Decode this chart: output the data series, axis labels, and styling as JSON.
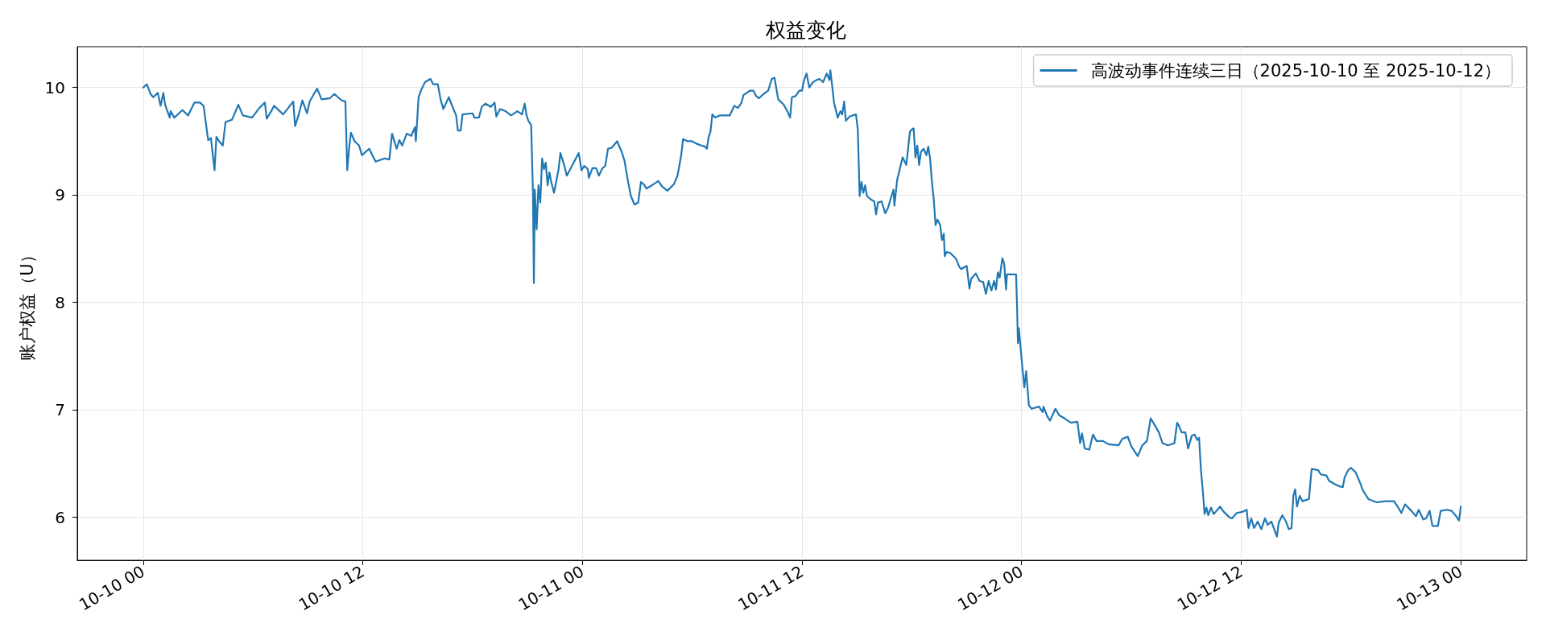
{
  "chart_data": {
    "type": "line",
    "title": "权益变化",
    "ylabel": "账户权益（U）",
    "x": [
      "2025-10-10T00:00",
      "2025-10-10T00:12",
      "2025-10-10T00:24",
      "2025-10-10T00:33",
      "2025-10-10T00:48",
      "2025-10-10T00:57",
      "2025-10-10T01:06",
      "2025-10-10T01:12",
      "2025-10-10T01:27",
      "2025-10-10T01:30",
      "2025-10-10T01:42",
      "2025-10-10T02:09",
      "2025-10-10T02:27",
      "2025-10-10T02:48",
      "2025-10-10T03:06",
      "2025-10-10T03:18",
      "2025-10-10T03:33",
      "2025-10-10T03:42",
      "2025-10-10T03:54",
      "2025-10-10T04:00",
      "2025-10-10T04:09",
      "2025-10-10T04:21",
      "2025-10-10T04:30",
      "2025-10-10T04:51",
      "2025-10-10T05:12",
      "2025-10-10T05:27",
      "2025-10-10T05:57",
      "2025-10-10T06:21",
      "2025-10-10T06:39",
      "2025-10-10T06:45",
      "2025-10-10T07:00",
      "2025-10-10T07:09",
      "2025-10-10T07:39",
      "2025-10-10T08:12",
      "2025-10-10T08:18",
      "2025-10-10T08:30",
      "2025-10-10T08:42",
      "2025-10-10T08:57",
      "2025-10-10T09:06",
      "2025-10-10T09:30",
      "2025-10-10T09:45",
      "2025-10-10T10:12",
      "2025-10-10T10:27",
      "2025-10-10T10:51",
      "2025-10-10T11:03",
      "2025-10-10T11:09",
      "2025-10-10T11:15",
      "2025-10-10T11:21",
      "2025-10-10T11:33",
      "2025-10-10T11:48",
      "2025-10-10T11:57",
      "2025-10-10T12:21",
      "2025-10-10T12:42",
      "2025-10-10T13:12",
      "2025-10-10T13:27",
      "2025-10-10T13:36",
      "2025-10-10T13:51",
      "2025-10-10T14:00",
      "2025-10-10T14:09",
      "2025-10-10T14:24",
      "2025-10-10T14:39",
      "2025-10-10T14:51",
      "2025-10-10T14:54",
      "2025-10-10T15:03",
      "2025-10-10T15:12",
      "2025-10-10T15:24",
      "2025-10-10T15:42",
      "2025-10-10T15:51",
      "2025-10-10T16:06",
      "2025-10-10T16:15",
      "2025-10-10T16:24",
      "2025-10-10T16:42",
      "2025-10-10T16:57",
      "2025-10-10T17:06",
      "2025-10-10T17:12",
      "2025-10-10T17:21",
      "2025-10-10T17:27",
      "2025-10-10T18:00",
      "2025-10-10T18:06",
      "2025-10-10T18:21",
      "2025-10-10T18:30",
      "2025-10-10T18:42",
      "2025-10-10T19:00",
      "2025-10-10T19:12",
      "2025-10-10T19:18",
      "2025-10-10T19:30",
      "2025-10-10T19:48",
      "2025-10-10T20:06",
      "2025-10-10T20:27",
      "2025-10-10T20:42",
      "2025-10-10T20:51",
      "2025-10-10T20:57",
      "2025-10-10T21:03",
      "2025-10-10T21:12",
      "2025-10-10T21:18",
      "2025-10-10T21:21",
      "2025-10-10T21:24",
      "2025-10-10T21:30",
      "2025-10-10T21:36",
      "2025-10-10T21:42",
      "2025-10-10T21:48",
      "2025-10-10T21:54",
      "2025-10-10T22:00",
      "2025-10-10T22:06",
      "2025-10-10T22:12",
      "2025-10-10T22:18",
      "2025-10-10T22:27",
      "2025-10-10T22:42",
      "2025-10-10T22:48",
      "2025-10-10T23:00",
      "2025-10-10T23:09",
      "2025-10-10T23:24",
      "2025-10-10T23:33",
      "2025-10-10T23:48",
      "2025-10-10T23:57",
      "2025-10-11T00:06",
      "2025-10-11T00:18",
      "2025-10-11T00:21",
      "2025-10-11T00:33",
      "2025-10-11T00:45",
      "2025-10-11T00:54",
      "2025-10-11T01:06",
      "2025-10-11T01:15",
      "2025-10-11T01:24",
      "2025-10-11T01:36",
      "2025-10-11T01:45",
      "2025-10-11T01:54",
      "2025-10-11T02:09",
      "2025-10-11T02:18",
      "2025-10-11T02:30",
      "2025-10-11T02:39",
      "2025-10-11T02:51",
      "2025-10-11T03:03",
      "2025-10-11T03:12",
      "2025-10-11T03:21",
      "2025-10-11T03:30",
      "2025-10-11T03:48",
      "2025-10-11T04:09",
      "2025-10-11T04:21",
      "2025-10-11T04:39",
      "2025-10-11T05:00",
      "2025-10-11T05:12",
      "2025-10-11T05:24",
      "2025-10-11T05:30",
      "2025-10-11T05:45",
      "2025-10-11T06:00",
      "2025-10-11T06:12",
      "2025-10-11T06:30",
      "2025-10-11T06:42",
      "2025-10-11T06:48",
      "2025-10-11T06:54",
      "2025-10-11T07:00",
      "2025-10-11T07:06",
      "2025-10-11T07:15",
      "2025-10-11T07:30",
      "2025-10-11T08:03",
      "2025-10-11T08:18",
      "2025-10-11T08:30",
      "2025-10-11T08:42",
      "2025-10-11T08:48",
      "2025-10-11T09:09",
      "2025-10-11T09:21",
      "2025-10-11T09:30",
      "2025-10-11T09:39",
      "2025-10-11T09:54",
      "2025-10-11T10:09",
      "2025-10-11T10:21",
      "2025-10-11T10:30",
      "2025-10-11T10:42",
      "2025-10-11T11:00",
      "2025-10-11T11:12",
      "2025-10-11T11:21",
      "2025-10-11T11:27",
      "2025-10-11T11:39",
      "2025-10-11T11:51",
      "2025-10-11T12:00",
      "2025-10-11T12:06",
      "2025-10-11T12:15",
      "2025-10-11T12:24",
      "2025-10-11T12:36",
      "2025-10-11T12:48",
      "2025-10-11T12:57",
      "2025-10-11T13:09",
      "2025-10-11T13:21",
      "2025-10-11T13:30",
      "2025-10-11T13:33",
      "2025-10-11T13:42",
      "2025-10-11T13:45",
      "2025-10-11T13:57",
      "2025-10-11T14:06",
      "2025-10-11T14:12",
      "2025-10-11T14:18",
      "2025-10-11T14:24",
      "2025-10-11T14:36",
      "2025-10-11T14:57",
      "2025-10-11T15:03",
      "2025-10-11T15:09",
      "2025-10-11T15:15",
      "2025-10-11T15:21",
      "2025-10-11T15:27",
      "2025-10-11T15:33",
      "2025-10-11T15:45",
      "2025-10-11T15:57",
      "2025-10-11T16:03",
      "2025-10-11T16:09",
      "2025-10-11T16:21",
      "2025-10-11T16:33",
      "2025-10-11T16:42",
      "2025-10-11T17:00",
      "2025-10-11T17:03",
      "2025-10-11T17:12",
      "2025-10-11T17:24",
      "2025-10-11T17:30",
      "2025-10-11T17:42",
      "2025-10-11T17:54",
      "2025-10-11T18:00",
      "2025-10-11T18:06",
      "2025-10-11T18:12",
      "2025-10-11T18:18",
      "2025-10-11T18:24",
      "2025-10-11T18:30",
      "2025-10-11T18:39",
      "2025-10-11T18:48",
      "2025-10-11T18:54",
      "2025-10-11T19:00",
      "2025-10-11T19:06",
      "2025-10-11T19:12",
      "2025-10-11T19:18",
      "2025-10-11T19:24",
      "2025-10-11T19:33",
      "2025-10-11T19:39",
      "2025-10-11T19:45",
      "2025-10-11T19:48",
      "2025-10-11T19:54",
      "2025-10-11T20:06",
      "2025-10-11T20:24",
      "2025-10-11T20:36",
      "2025-10-11T20:42",
      "2025-10-11T21:00",
      "2025-10-11T21:09",
      "2025-10-11T21:15",
      "2025-10-11T21:30",
      "2025-10-11T21:42",
      "2025-10-11T21:54",
      "2025-10-11T22:03",
      "2025-10-11T22:12",
      "2025-10-11T22:21",
      "2025-10-11T22:30",
      "2025-10-11T22:36",
      "2025-10-11T22:42",
      "2025-10-11T22:48",
      "2025-10-11T22:57",
      "2025-10-11T23:03",
      "2025-10-11T23:09",
      "2025-10-11T23:12",
      "2025-10-11T23:42",
      "2025-10-11T23:45",
      "2025-10-11T23:48",
      "2025-10-11T23:51",
      "2025-10-11T23:57",
      "2025-10-12T00:03",
      "2025-10-12T00:09",
      "2025-10-12T00:15",
      "2025-10-12T00:24",
      "2025-10-12T00:33",
      "2025-10-12T00:57",
      "2025-10-12T01:09",
      "2025-10-12T01:12",
      "2025-10-12T01:24",
      "2025-10-12T01:33",
      "2025-10-12T01:51",
      "2025-10-12T02:03",
      "2025-10-12T02:21",
      "2025-10-12T02:42",
      "2025-10-12T03:03",
      "2025-10-12T03:12",
      "2025-10-12T03:18",
      "2025-10-12T03:27",
      "2025-10-12T03:42",
      "2025-10-12T03:54",
      "2025-10-12T04:06",
      "2025-10-12T04:27",
      "2025-10-12T04:45",
      "2025-10-12T05:18",
      "2025-10-12T05:30",
      "2025-10-12T05:48",
      "2025-10-12T06:00",
      "2025-10-12T06:21",
      "2025-10-12T06:36",
      "2025-10-12T06:51",
      "2025-10-12T07:03",
      "2025-10-12T07:12",
      "2025-10-12T07:30",
      "2025-10-12T07:42",
      "2025-10-12T08:00",
      "2025-10-12T08:21",
      "2025-10-12T08:30",
      "2025-10-12T08:36",
      "2025-10-12T08:45",
      "2025-10-12T08:57",
      "2025-10-12T09:06",
      "2025-10-12T09:18",
      "2025-10-12T09:27",
      "2025-10-12T09:36",
      "2025-10-12T09:42",
      "2025-10-12T09:48",
      "2025-10-12T09:54",
      "2025-10-12T10:00",
      "2025-10-12T10:06",
      "2025-10-12T10:12",
      "2025-10-12T10:21",
      "2025-10-12T10:30",
      "2025-10-12T10:51",
      "2025-10-12T11:00",
      "2025-10-12T11:21",
      "2025-10-12T11:30",
      "2025-10-12T11:45",
      "2025-10-12T12:03",
      "2025-10-12T12:18",
      "2025-10-12T12:24",
      "2025-10-12T12:33",
      "2025-10-12T12:42",
      "2025-10-12T12:54",
      "2025-10-12T13:06",
      "2025-10-12T13:18",
      "2025-10-12T13:27",
      "2025-10-12T13:39",
      "2025-10-12T13:57",
      "2025-10-12T14:03",
      "2025-10-12T14:15",
      "2025-10-12T14:27",
      "2025-10-12T14:36",
      "2025-10-12T14:45",
      "2025-10-12T14:51",
      "2025-10-12T14:57",
      "2025-10-12T15:03",
      "2025-10-12T15:12",
      "2025-10-12T15:21",
      "2025-10-12T15:42",
      "2025-10-12T15:51",
      "2025-10-12T16:12",
      "2025-10-12T16:21",
      "2025-10-12T16:39",
      "2025-10-12T16:48",
      "2025-10-12T17:06",
      "2025-10-12T17:21",
      "2025-10-12T17:33",
      "2025-10-12T17:39",
      "2025-10-12T17:51",
      "2025-10-12T18:00",
      "2025-10-12T18:15",
      "2025-10-12T18:30",
      "2025-10-12T18:39",
      "2025-10-12T18:57",
      "2025-10-12T19:24",
      "2025-10-12T19:54",
      "2025-10-12T20:21",
      "2025-10-12T20:33",
      "2025-10-12T20:45",
      "2025-10-12T20:57",
      "2025-10-12T21:18",
      "2025-10-12T21:33",
      "2025-10-12T21:42",
      "2025-10-12T21:57",
      "2025-10-12T22:06",
      "2025-10-12T22:18",
      "2025-10-12T22:27",
      "2025-10-12T22:45",
      "2025-10-12T22:54",
      "2025-10-12T23:15",
      "2025-10-12T23:30",
      "2025-10-12T23:45",
      "2025-10-12T23:54",
      "2025-10-12T23:57",
      "2025-10-13T00:00"
    ],
    "series": [
      {
        "name": "高波动事件连续三日（2025-10-10 至 2025-10-12）",
        "color": "#1f77b4",
        "values": [
          10.0,
          10.03,
          9.94,
          9.91,
          9.95,
          9.83,
          9.95,
          9.84,
          9.72,
          9.78,
          9.72,
          9.79,
          9.74,
          9.86,
          9.86,
          9.83,
          9.51,
          9.53,
          9.23,
          9.54,
          9.5,
          9.46,
          9.68,
          9.7,
          9.84,
          9.74,
          9.72,
          9.81,
          9.86,
          9.71,
          9.78,
          9.83,
          9.75,
          9.87,
          9.64,
          9.75,
          9.88,
          9.76,
          9.87,
          9.99,
          9.89,
          9.9,
          9.94,
          9.88,
          9.87,
          9.23,
          9.43,
          9.58,
          9.5,
          9.46,
          9.37,
          9.43,
          9.31,
          9.34,
          9.33,
          9.57,
          9.43,
          9.51,
          9.46,
          9.57,
          9.55,
          9.63,
          9.5,
          9.91,
          9.98,
          10.05,
          10.08,
          10.03,
          10.03,
          9.89,
          9.8,
          9.91,
          9.8,
          9.74,
          9.6,
          9.6,
          9.75,
          9.76,
          9.72,
          9.72,
          9.82,
          9.85,
          9.82,
          9.86,
          9.73,
          9.8,
          9.78,
          9.74,
          9.78,
          9.75,
          9.85,
          9.74,
          9.69,
          9.65,
          9.02,
          8.18,
          9.05,
          8.68,
          9.09,
          8.93,
          9.34,
          9.24,
          9.3,
          9.09,
          9.21,
          9.12,
          9.02,
          9.24,
          9.39,
          9.28,
          9.18,
          9.26,
          9.31,
          9.39,
          9.23,
          9.27,
          9.24,
          9.16,
          9.25,
          9.25,
          9.18,
          9.25,
          9.27,
          9.43,
          9.44,
          9.47,
          9.5,
          9.4,
          9.32,
          9.12,
          8.99,
          8.91,
          8.93,
          9.12,
          9.1,
          9.06,
          9.09,
          9.13,
          9.08,
          9.04,
          9.1,
          9.18,
          9.37,
          9.52,
          9.5,
          9.5,
          9.48,
          9.46,
          9.45,
          9.43,
          9.54,
          9.59,
          9.75,
          9.72,
          9.74,
          9.74,
          9.83,
          9.81,
          9.86,
          9.93,
          9.97,
          9.97,
          9.92,
          9.9,
          9.94,
          9.97,
          10.08,
          10.09,
          9.89,
          9.84,
          9.78,
          9.72,
          9.91,
          9.92,
          9.97,
          9.97,
          10.06,
          10.13,
          10.0,
          10.05,
          10.07,
          10.08,
          10.05,
          10.13,
          10.07,
          10.16,
          9.94,
          9.86,
          9.72,
          9.78,
          9.75,
          9.87,
          9.69,
          9.73,
          9.75,
          9.61,
          8.99,
          9.12,
          9.02,
          9.09,
          8.99,
          8.96,
          8.94,
          8.82,
          8.93,
          8.94,
          8.83,
          8.88,
          9.05,
          8.9,
          9.14,
          9.28,
          9.35,
          9.28,
          9.59,
          9.61,
          9.62,
          9.35,
          9.46,
          9.28,
          9.4,
          9.43,
          9.37,
          9.45,
          9.34,
          9.12,
          8.96,
          8.72,
          8.77,
          8.72,
          8.58,
          8.64,
          8.43,
          8.47,
          8.46,
          8.41,
          8.33,
          8.31,
          8.34,
          8.13,
          8.22,
          8.27,
          8.2,
          8.19,
          8.08,
          8.2,
          8.11,
          8.2,
          8.12,
          8.28,
          8.23,
          8.41,
          8.36,
          8.12,
          8.26,
          8.26,
          7.98,
          7.62,
          7.76,
          7.57,
          7.38,
          7.21,
          7.36,
          7.04,
          7.01,
          7.03,
          6.98,
          7.03,
          6.94,
          6.9,
          7.01,
          6.95,
          6.92,
          6.88,
          6.89,
          6.69,
          6.78,
          6.64,
          6.63,
          6.77,
          6.71,
          6.71,
          6.68,
          6.67,
          6.73,
          6.75,
          6.66,
          6.57,
          6.67,
          6.71,
          6.92,
          6.88,
          6.79,
          6.69,
          6.67,
          6.69,
          6.88,
          6.85,
          6.79,
          6.79,
          6.64,
          6.76,
          6.77,
          6.72,
          6.74,
          6.44,
          6.25,
          6.03,
          6.09,
          6.02,
          6.09,
          6.03,
          6.1,
          6.06,
          6.0,
          5.99,
          6.04,
          6.05,
          6.07,
          5.9,
          5.99,
          5.9,
          5.96,
          5.89,
          5.99,
          5.93,
          5.96,
          5.82,
          5.95,
          6.02,
          5.96,
          5.89,
          5.9,
          6.2,
          6.26,
          6.1,
          6.2,
          6.15,
          6.17,
          6.45,
          6.44,
          6.4,
          6.39,
          6.34,
          6.31,
          6.29,
          6.28,
          6.37,
          6.44,
          6.46,
          6.42,
          6.32,
          6.25,
          6.17,
          6.14,
          6.15,
          6.15,
          6.1,
          6.04,
          6.12,
          6.06,
          6.01,
          6.07,
          5.98,
          5.99,
          6.06,
          5.92,
          5.92,
          6.06,
          6.07,
          6.06,
          6.01,
          5.97,
          6.03,
          6.1
        ]
      }
    ],
    "xlim": [
      "2025-10-09T20:24",
      "2025-10-13T03:36"
    ],
    "xticks": [
      {
        "value": "2025-10-10T00:00",
        "label": "10-10 00"
      },
      {
        "value": "2025-10-10T12:00",
        "label": "10-10 12"
      },
      {
        "value": "2025-10-11T00:00",
        "label": "10-11 00"
      },
      {
        "value": "2025-10-11T12:00",
        "label": "10-11 12"
      },
      {
        "value": "2025-10-12T00:00",
        "label": "10-12 00"
      },
      {
        "value": "2025-10-12T12:00",
        "label": "10-12 12"
      },
      {
        "value": "2025-10-13T00:00",
        "label": "10-13 00"
      }
    ],
    "ylim": [
      5.6,
      10.38
    ],
    "yticks": [
      6,
      7,
      8,
      9,
      10
    ],
    "grid": true,
    "legend": "top right",
    "marker": "none"
  }
}
